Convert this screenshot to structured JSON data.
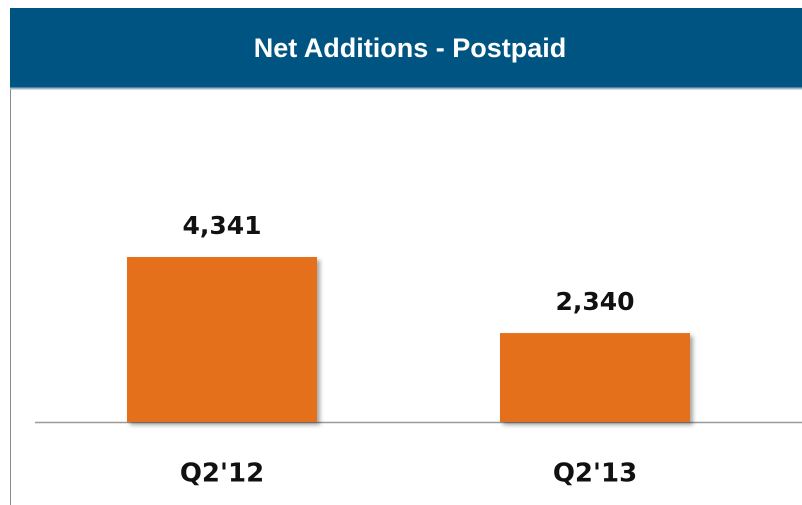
{
  "chart_data": {
    "type": "bar",
    "title": "Net Additions - Postpaid",
    "categories": [
      "Q2'12",
      "Q2'13"
    ],
    "values": [
      4341,
      2340
    ],
    "value_labels": [
      "4,341",
      "2,340"
    ],
    "color": "#e4701e"
  }
}
